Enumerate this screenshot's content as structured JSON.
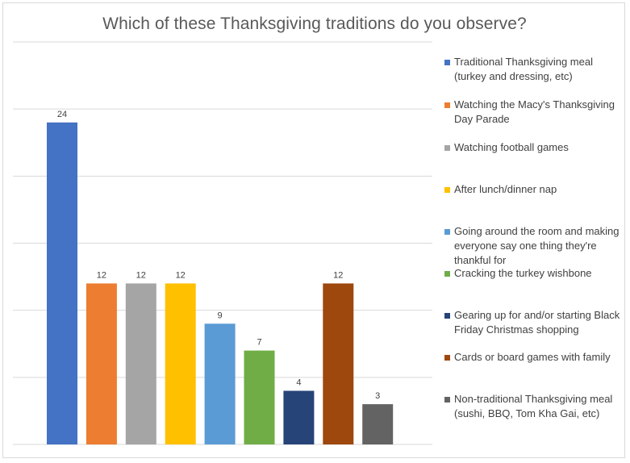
{
  "chart_data": {
    "type": "bar",
    "title": "Which of these Thanksgiving traditions do you observe?",
    "xlabel": "",
    "ylabel": "",
    "ylim": [
      0,
      30
    ],
    "grid": true,
    "legend_position": "right",
    "categories": [
      "Traditional Thanksgiving meal (turkey and dressing, etc)",
      "Watching the Macy's Thanksgiving Day Parade",
      "Watching football games",
      "After lunch/dinner nap",
      "Going around the room and making everyone say one thing they're thankful for",
      "Cracking the turkey wishbone",
      "Gearing up for and/or starting Black Friday Christmas shopping",
      "Cards or board games with family",
      "Non-traditional Thanksgiving meal (sushi, BBQ, Tom Kha Gai, etc)"
    ],
    "values": [
      24,
      12,
      12,
      12,
      9,
      7,
      4,
      12,
      3
    ],
    "data_labels": [
      "24",
      "12",
      "12",
      "12",
      "9",
      "7",
      "4",
      "12",
      "3"
    ],
    "colors": [
      "#4472c4",
      "#ed7d31",
      "#a5a5a5",
      "#ffc000",
      "#5b9bd5",
      "#70ad47",
      "#264478",
      "#9e480e",
      "#636363"
    ]
  }
}
